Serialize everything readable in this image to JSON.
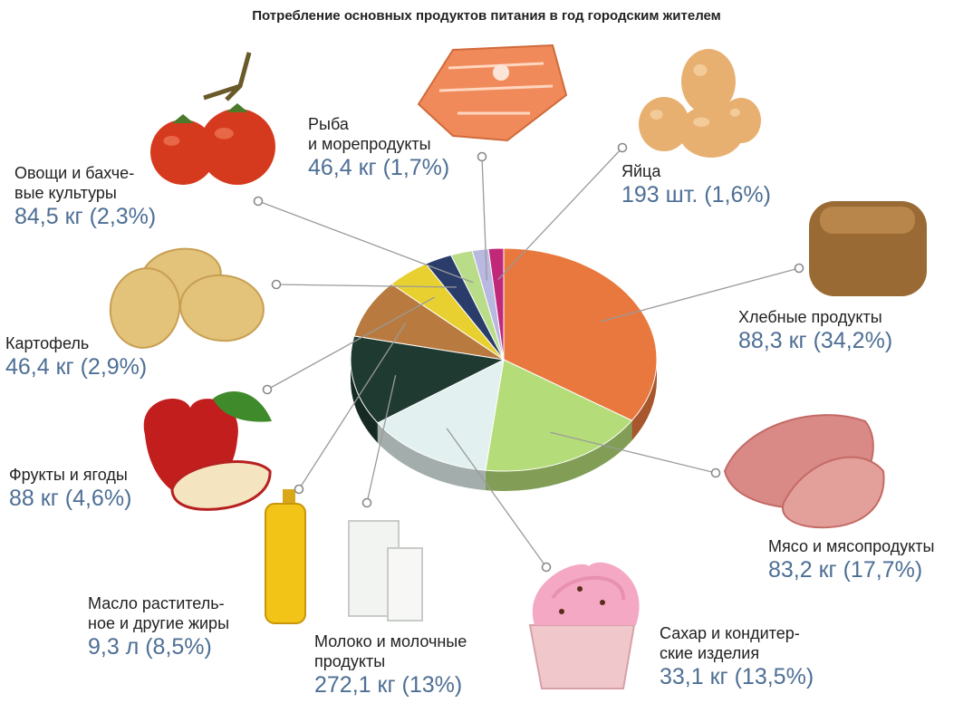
{
  "chart_data": {
    "type": "pie",
    "title": "Потребление основных продуктов питания в год городским жителем",
    "slices": [
      {
        "name_lines": [
          "Хлебные продукты"
        ],
        "value_text": "88,3 кг (34,2%)",
        "percent": 34.2,
        "color": "#e8783e"
      },
      {
        "name_lines": [
          "Мясо и мясопродукты"
        ],
        "value_text": "83,2 кг (17,7%)",
        "percent": 17.7,
        "color": "#b4dc78"
      },
      {
        "name_lines": [
          "Сахар и кондитер-",
          "ские изделия"
        ],
        "value_text": "33,1 кг (13,5%)",
        "percent": 13.5,
        "color": "#e2f0ef"
      },
      {
        "name_lines": [
          "Молоко и молочные",
          "продукты"
        ],
        "value_text": "272,1 кг (13%)",
        "percent": 13.0,
        "color": "#1f3a30"
      },
      {
        "name_lines": [
          "Масло раститель-",
          "ное и другие жиры"
        ],
        "value_text": "9,3 л (8,5%)",
        "percent": 8.5,
        "color": "#b87a3e"
      },
      {
        "name_lines": [
          "Фрукты и ягоды"
        ],
        "value_text": "88 кг (4,6%)",
        "percent": 4.6,
        "color": "#e8d030"
      },
      {
        "name_lines": [
          "Картофель"
        ],
        "value_text": "46,4 кг (2,9%)",
        "percent": 2.9,
        "color": "#2a3d6a"
      },
      {
        "name_lines": [
          "Овощи и бахче-",
          "вые культуры"
        ],
        "value_text": "84,5 кг (2,3%)",
        "percent": 2.3,
        "color": "#b8dc88"
      },
      {
        "name_lines": [
          "Рыба",
          "и морепродукты"
        ],
        "value_text": "46,4 кг (1,7%)",
        "percent": 1.7,
        "color": "#b8b8e0"
      },
      {
        "name_lines": [
          "Яйца"
        ],
        "value_text": "193 шт. (1,6%)",
        "percent": 1.6,
        "color": "#c0287a"
      }
    ]
  }
}
